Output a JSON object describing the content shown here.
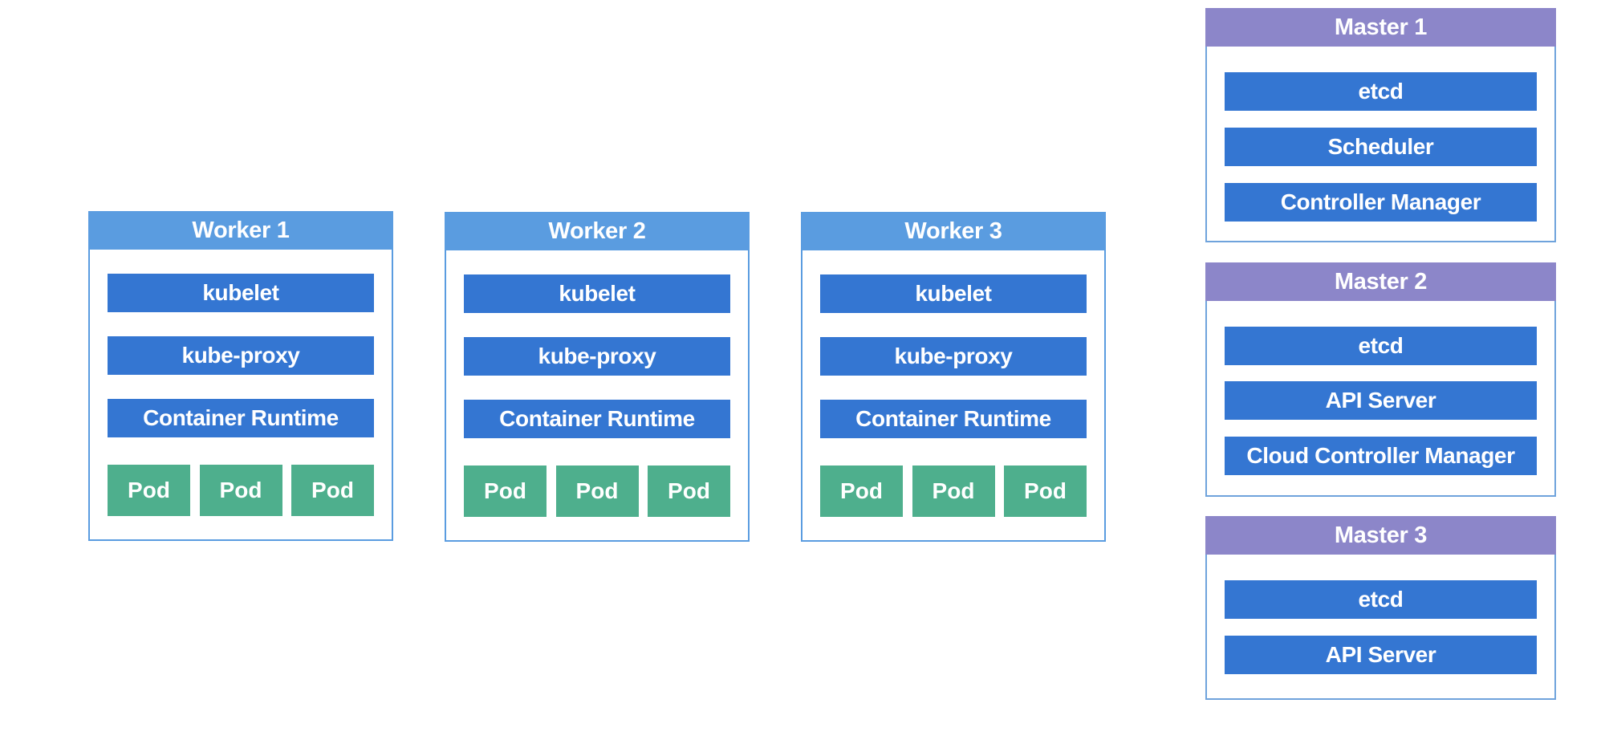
{
  "colors": {
    "worker_header": "#5a9ce0",
    "master_header": "#8c86c9",
    "component": "#3476d2",
    "pod": "#4eaf8d"
  },
  "workers": [
    {
      "title": "Worker 1",
      "components": [
        "kubelet",
        "kube-proxy",
        "Container Runtime"
      ],
      "pods": [
        "Pod",
        "Pod",
        "Pod"
      ]
    },
    {
      "title": "Worker 2",
      "components": [
        "kubelet",
        "kube-proxy",
        "Container Runtime"
      ],
      "pods": [
        "Pod",
        "Pod",
        "Pod"
      ]
    },
    {
      "title": "Worker 3",
      "components": [
        "kubelet",
        "kube-proxy",
        "Container Runtime"
      ],
      "pods": [
        "Pod",
        "Pod",
        "Pod"
      ]
    }
  ],
  "masters": [
    {
      "title": "Master 1",
      "components": [
        "etcd",
        "Scheduler",
        "Controller Manager"
      ]
    },
    {
      "title": "Master 2",
      "components": [
        "etcd",
        "API Server",
        "Cloud Controller Manager"
      ]
    },
    {
      "title": "Master 3",
      "components": [
        "etcd",
        "API Server"
      ]
    }
  ]
}
